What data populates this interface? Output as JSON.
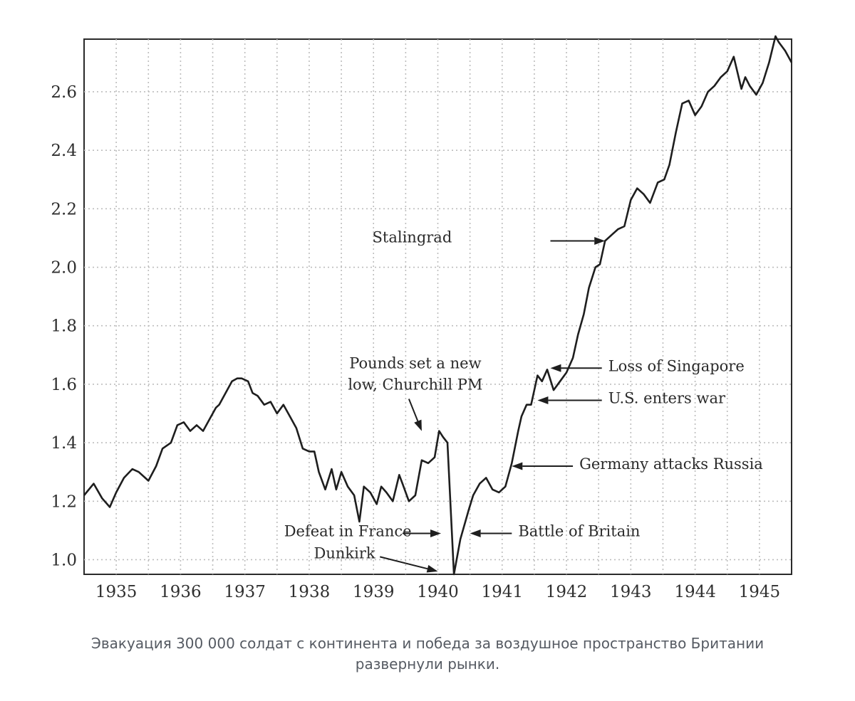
{
  "caption": "Эвакуация 300 000 солдат с континента и победа за воздушное пространство Британии развернули рынки.",
  "chart_data": {
    "type": "line",
    "title": "",
    "xlabel": "",
    "ylabel": "",
    "xlim": [
      1934.5,
      1945.5
    ],
    "ylim": [
      0.95,
      2.78
    ],
    "xticks": [
      1935,
      1936,
      1937,
      1938,
      1939,
      1940,
      1941,
      1942,
      1943,
      1944,
      1945
    ],
    "yticks": [
      1.0,
      1.2,
      1.4,
      1.6,
      1.8,
      2.0,
      2.2,
      2.4,
      2.6
    ],
    "ytick_labels": [
      "1.0",
      "1.2",
      "1.4",
      "1.6",
      "1.8",
      "2.0",
      "2.2",
      "2.4",
      "2.6"
    ],
    "grid": true,
    "legend": "none",
    "series": [
      {
        "color": "#1e1e1e",
        "x": [
          1934.5,
          1934.65,
          1934.78,
          1934.9,
          1935.0,
          1935.12,
          1935.25,
          1935.35,
          1935.5,
          1935.62,
          1935.72,
          1935.85,
          1935.95,
          1936.05,
          1936.15,
          1936.25,
          1936.35,
          1936.45,
          1936.55,
          1936.6,
          1936.7,
          1936.8,
          1936.88,
          1936.95,
          1937.05,
          1937.12,
          1937.2,
          1937.3,
          1937.4,
          1937.5,
          1937.6,
          1937.7,
          1937.8,
          1937.9,
          1938.0,
          1938.08,
          1938.15,
          1938.25,
          1938.35,
          1938.42,
          1938.5,
          1938.6,
          1938.7,
          1938.78,
          1938.85,
          1938.95,
          1939.05,
          1939.12,
          1939.2,
          1939.3,
          1939.4,
          1939.45,
          1939.55,
          1939.65,
          1939.75,
          1939.85,
          1939.95,
          1940.02,
          1940.08,
          1940.15,
          1940.25,
          1940.35,
          1940.48,
          1940.55,
          1940.65,
          1940.75,
          1940.85,
          1940.95,
          1941.05,
          1941.15,
          1941.25,
          1941.3,
          1941.38,
          1941.45,
          1941.55,
          1941.62,
          1941.7,
          1941.8,
          1941.9,
          1942.0,
          1942.1,
          1942.18,
          1942.27,
          1942.35,
          1942.45,
          1942.52,
          1942.6,
          1942.7,
          1942.8,
          1942.9,
          1943.0,
          1943.1,
          1943.2,
          1943.3,
          1943.42,
          1943.52,
          1943.6,
          1943.7,
          1943.8,
          1943.9,
          1944.0,
          1944.1,
          1944.2,
          1944.3,
          1944.4,
          1944.5,
          1944.6,
          1944.72,
          1944.78,
          1944.85,
          1944.95,
          1945.05,
          1945.15,
          1945.25,
          1945.3,
          1945.4,
          1945.5
        ],
        "values": [
          1.22,
          1.26,
          1.21,
          1.18,
          1.23,
          1.28,
          1.31,
          1.3,
          1.27,
          1.32,
          1.38,
          1.4,
          1.46,
          1.47,
          1.44,
          1.46,
          1.44,
          1.48,
          1.52,
          1.53,
          1.57,
          1.61,
          1.62,
          1.62,
          1.61,
          1.57,
          1.56,
          1.53,
          1.54,
          1.5,
          1.53,
          1.49,
          1.45,
          1.38,
          1.37,
          1.37,
          1.3,
          1.24,
          1.31,
          1.24,
          1.3,
          1.25,
          1.22,
          1.13,
          1.25,
          1.23,
          1.19,
          1.25,
          1.23,
          1.2,
          1.29,
          1.26,
          1.2,
          1.22,
          1.34,
          1.33,
          1.35,
          1.44,
          1.42,
          1.4,
          0.95,
          1.07,
          1.17,
          1.22,
          1.26,
          1.28,
          1.24,
          1.23,
          1.25,
          1.33,
          1.44,
          1.49,
          1.53,
          1.53,
          1.63,
          1.61,
          1.65,
          1.58,
          1.61,
          1.64,
          1.69,
          1.77,
          1.84,
          1.93,
          2.0,
          2.01,
          2.09,
          2.11,
          2.13,
          2.14,
          2.23,
          2.27,
          2.25,
          2.22,
          2.29,
          2.3,
          2.35,
          2.46,
          2.56,
          2.57,
          2.52,
          2.55,
          2.6,
          2.62,
          2.65,
          2.67,
          2.72,
          2.61,
          2.65,
          2.62,
          2.59,
          2.63,
          2.7,
          2.79,
          2.77,
          2.74,
          2.7
        ]
      }
    ],
    "annotations": [
      {
        "lines": [
          "Stalingrad"
        ],
        "text_x": 1939.6,
        "text_y": 2.085,
        "anchor": "middle",
        "arrow_from": [
          1941.75,
          2.09
        ],
        "arrow_to": [
          1942.6,
          2.09
        ]
      },
      {
        "lines": [
          "Pounds set a new",
          "low, Churchill PM"
        ],
        "text_x": 1939.65,
        "text_y": 1.655,
        "anchor": "middle",
        "arrow_from": [
          1939.55,
          1.55
        ],
        "arrow_to": [
          1939.75,
          1.44
        ]
      },
      {
        "lines": [
          "Loss of Singapore"
        ],
        "text_x": 1942.65,
        "text_y": 1.645,
        "anchor": "start",
        "arrow_from": [
          1942.55,
          1.655
        ],
        "arrow_to": [
          1941.75,
          1.655
        ]
      },
      {
        "lines": [
          "U.S. enters war"
        ],
        "text_x": 1942.65,
        "text_y": 1.535,
        "anchor": "start",
        "arrow_from": [
          1942.55,
          1.545
        ],
        "arrow_to": [
          1941.55,
          1.545
        ]
      },
      {
        "lines": [
          "Germany attacks Russia"
        ],
        "text_x": 1942.2,
        "text_y": 1.31,
        "anchor": "start",
        "arrow_from": [
          1942.1,
          1.32
        ],
        "arrow_to": [
          1941.15,
          1.32
        ]
      },
      {
        "lines": [
          "Defeat in France"
        ],
        "text_x": 1938.6,
        "text_y": 1.08,
        "anchor": "middle",
        "arrow_from": [
          1939.45,
          1.09
        ],
        "arrow_to": [
          1940.05,
          1.09
        ]
      },
      {
        "lines": [
          "Battle of Britain"
        ],
        "text_x": 1941.25,
        "text_y": 1.08,
        "anchor": "start",
        "arrow_from": [
          1941.15,
          1.09
        ],
        "arrow_to": [
          1940.5,
          1.09
        ]
      },
      {
        "lines": [
          "Dunkirk"
        ],
        "text_x": 1938.55,
        "text_y": 1.005,
        "anchor": "middle",
        "arrow_from": [
          1939.1,
          1.01
        ],
        "arrow_to": [
          1940.0,
          0.96
        ]
      }
    ]
  }
}
